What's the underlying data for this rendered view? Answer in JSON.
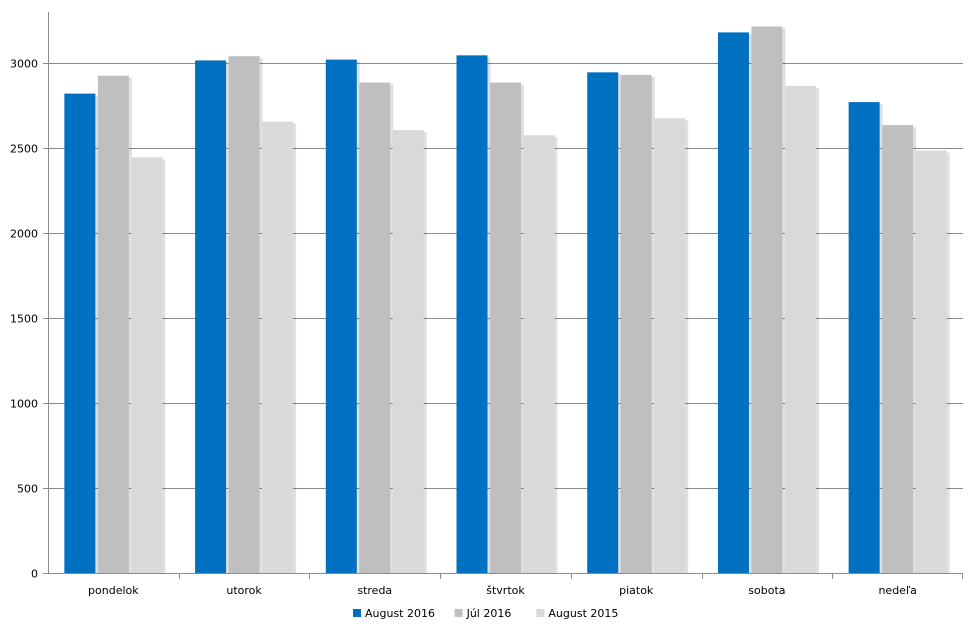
{
  "chart_data": {
    "type": "bar",
    "categories": [
      "pondelok",
      "utorok",
      "streda",
      "štvrtok",
      "piatok",
      "sobota",
      "nedeľa"
    ],
    "series": [
      {
        "name": "August 2016",
        "color": "#0070c0",
        "values": [
          2820,
          3015,
          3020,
          3045,
          2945,
          3180,
          2770
        ]
      },
      {
        "name": "Júl 2016",
        "color": "#bfbfbf",
        "values": [
          2925,
          3040,
          2885,
          2885,
          2930,
          3215,
          2635
        ]
      },
      {
        "name": "August 2015",
        "color": "#d9d9d9",
        "values": [
          2445,
          2655,
          2605,
          2575,
          2675,
          2865,
          2485
        ]
      }
    ],
    "yticks": [
      "0",
      "500",
      "1000",
      "1500",
      "2000",
      "2500",
      "3000"
    ],
    "ylim": [
      0,
      3300
    ],
    "grid": true,
    "legend_position": "bottom",
    "title": "",
    "xlabel": "",
    "ylabel": ""
  }
}
